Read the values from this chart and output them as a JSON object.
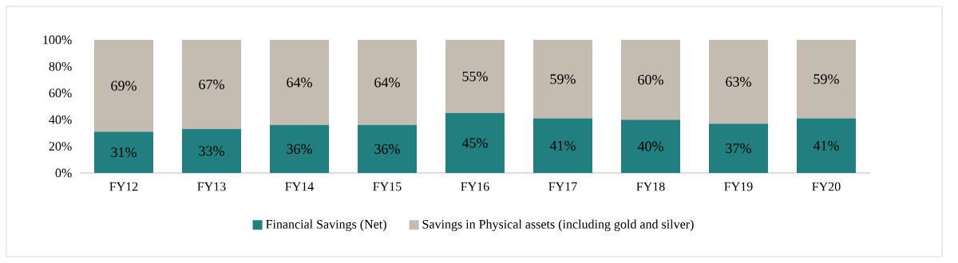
{
  "chart_data": {
    "type": "bar",
    "stacked": true,
    "categories": [
      "FY12",
      "FY13",
      "FY14",
      "FY15",
      "FY16",
      "FY17",
      "FY18",
      "FY19",
      "FY20"
    ],
    "series": [
      {
        "name": "Financial Savings (Net)",
        "color": "#217f7f",
        "values": [
          31,
          33,
          36,
          36,
          45,
          41,
          40,
          37,
          41
        ],
        "value_labels": [
          "31%",
          "33%",
          "36%",
          "36%",
          "45%",
          "41%",
          "40%",
          "37%",
          "41%"
        ]
      },
      {
        "name": "Savings in Physical assets (including gold and silver)",
        "color": "#c4bcb0",
        "values": [
          69,
          67,
          64,
          64,
          55,
          59,
          60,
          63,
          59
        ],
        "value_labels": [
          "69%",
          "67%",
          "64%",
          "64%",
          "55%",
          "59%",
          "60%",
          "63%",
          "59%"
        ]
      }
    ],
    "ylim": [
      0,
      100
    ],
    "yticks": [
      {
        "value": 0,
        "label": "0%"
      },
      {
        "value": 20,
        "label": "20%"
      },
      {
        "value": 40,
        "label": "40%"
      },
      {
        "value": 60,
        "label": "60%"
      },
      {
        "value": 80,
        "label": "80%"
      },
      {
        "value": 100,
        "label": "100%"
      }
    ],
    "legend": "bottom"
  }
}
